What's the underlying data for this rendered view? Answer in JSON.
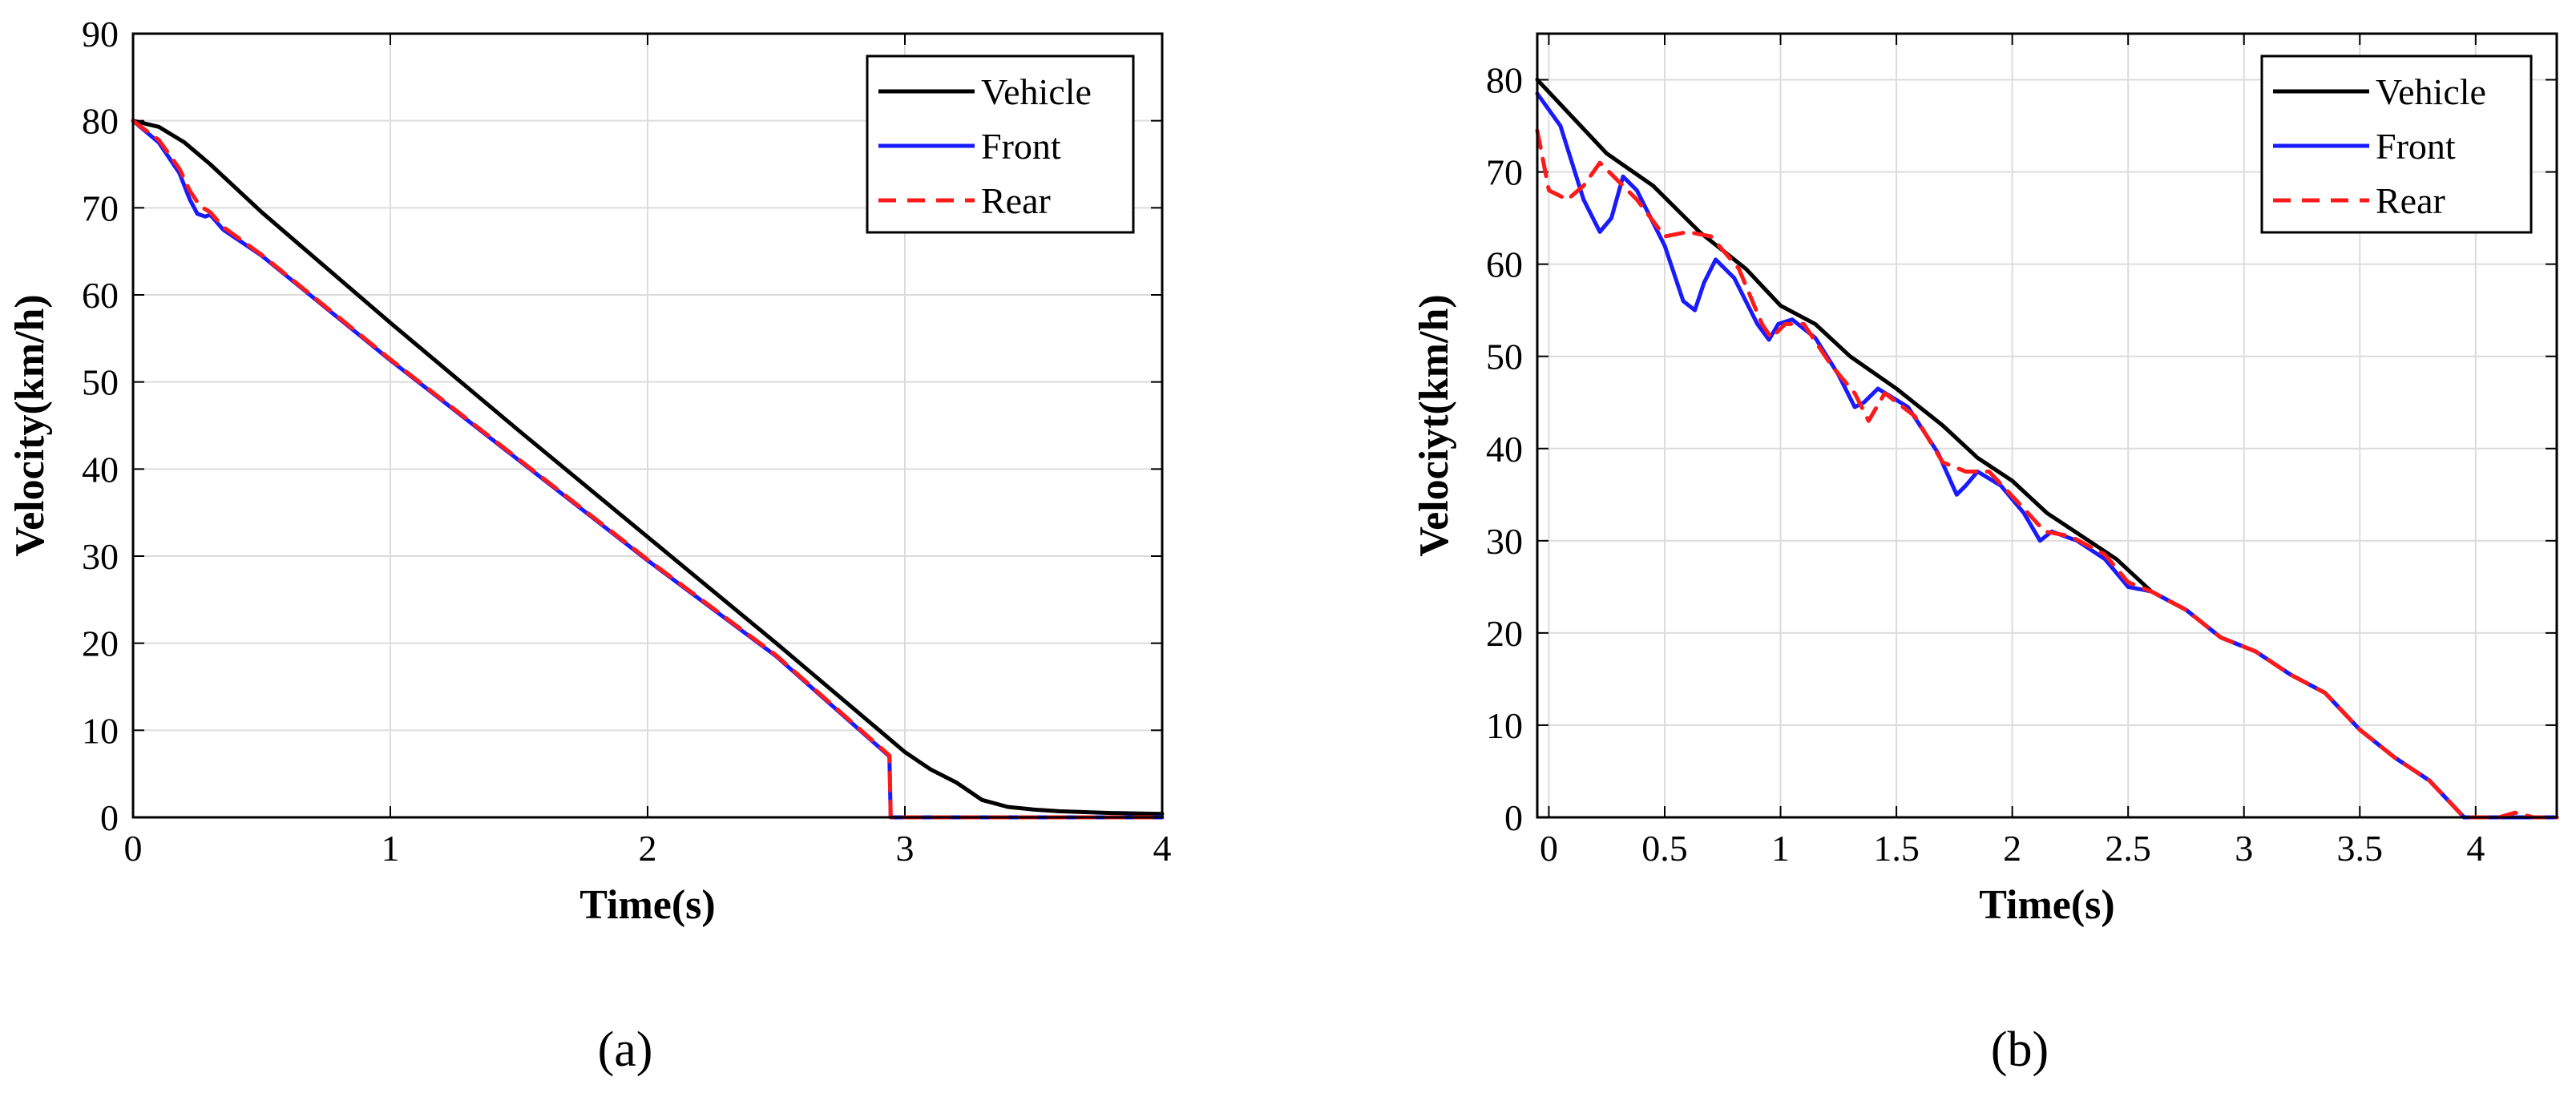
{
  "chart_data": [
    {
      "type": "line",
      "panel_label": "(a)",
      "xlabel": "Time(s)",
      "ylabel": "Velocity(km/h)",
      "xlim": [
        0,
        4
      ],
      "ylim": [
        0,
        90
      ],
      "xticks": [
        0,
        1,
        2,
        3,
        4
      ],
      "xtick_labels": [
        "0",
        "1",
        "2",
        "3",
        "4"
      ],
      "yticks": [
        0,
        10,
        20,
        30,
        40,
        50,
        60,
        70,
        80,
        90
      ],
      "ytick_labels": [
        "0",
        "10",
        "20",
        "30",
        "40",
        "50",
        "60",
        "70",
        "80",
        "90"
      ],
      "grid": true,
      "legend_position": "top-right",
      "series": [
        {
          "name": "Vehicle",
          "color": "#000000",
          "dash": "solid",
          "points": [
            [
              0,
              80
            ],
            [
              0.1,
              79.3
            ],
            [
              0.2,
              77.5
            ],
            [
              0.3,
              75
            ],
            [
              0.5,
              69.5
            ],
            [
              1,
              56.8
            ],
            [
              1.5,
              44.4
            ],
            [
              2,
              32.2
            ],
            [
              2.5,
              20
            ],
            [
              2.9,
              10
            ],
            [
              3,
              7.5
            ],
            [
              3.1,
              5.5
            ],
            [
              3.2,
              4
            ],
            [
              3.3,
              2
            ],
            [
              3.4,
              1.2
            ],
            [
              3.5,
              0.9
            ],
            [
              3.6,
              0.7
            ],
            [
              3.8,
              0.5
            ],
            [
              4,
              0.4
            ]
          ]
        },
        {
          "name": "Front",
          "color": "#1a1aff",
          "dash": "solid",
          "points": [
            [
              0,
              80
            ],
            [
              0.1,
              77.5
            ],
            [
              0.18,
              74
            ],
            [
              0.22,
              71
            ],
            [
              0.25,
              69.3
            ],
            [
              0.28,
              69
            ],
            [
              0.3,
              69.2
            ],
            [
              0.35,
              67.5
            ],
            [
              0.5,
              64.5
            ],
            [
              1,
              52.5
            ],
            [
              1.5,
              41
            ],
            [
              2,
              29.5
            ],
            [
              2.5,
              18.5
            ],
            [
              2.94,
              7
            ],
            [
              2.945,
              0
            ],
            [
              3.2,
              0
            ],
            [
              4,
              0
            ]
          ]
        },
        {
          "name": "Rear",
          "color": "#ff1a1a",
          "dash": "dashed",
          "points": [
            [
              0,
              80
            ],
            [
              0.1,
              77.8
            ],
            [
              0.18,
              74.5
            ],
            [
              0.22,
              72
            ],
            [
              0.26,
              70.2
            ],
            [
              0.3,
              69.5
            ],
            [
              0.35,
              67.8
            ],
            [
              0.5,
              64.6
            ],
            [
              1,
              52.6
            ],
            [
              1.5,
              41.1
            ],
            [
              2,
              29.6
            ],
            [
              2.5,
              18.6
            ],
            [
              2.94,
              7.1
            ],
            [
              2.945,
              0
            ],
            [
              3.2,
              0
            ],
            [
              4,
              0
            ]
          ]
        }
      ]
    },
    {
      "type": "line",
      "panel_label": "(b)",
      "xlabel": "Time(s)",
      "ylabel": "Velociyt(km/h)",
      "xlim": [
        -0.05,
        4.35
      ],
      "ylim": [
        0,
        85
      ],
      "xticks": [
        0,
        0.5,
        1,
        1.5,
        2,
        2.5,
        3,
        3.5,
        4
      ],
      "xtick_labels": [
        "0",
        "0.5",
        "1",
        "1.5",
        "2",
        "2.5",
        "3",
        "3.5",
        "4"
      ],
      "yticks": [
        0,
        10,
        20,
        30,
        40,
        50,
        60,
        70,
        80
      ],
      "ytick_labels": [
        "0",
        "10",
        "20",
        "30",
        "40",
        "50",
        "60",
        "70",
        "80"
      ],
      "grid": true,
      "legend_position": "top-right",
      "series": [
        {
          "name": "Vehicle",
          "color": "#000000",
          "dash": "solid",
          "points": [
            [
              -0.05,
              80
            ],
            [
              0.1,
              76
            ],
            [
              0.25,
              72
            ],
            [
              0.45,
              68.5
            ],
            [
              0.65,
              63.5
            ],
            [
              0.85,
              59.5
            ],
            [
              1,
              55.5
            ],
            [
              1.15,
              53.5
            ],
            [
              1.3,
              50
            ],
            [
              1.5,
              46.5
            ],
            [
              1.7,
              42.5
            ],
            [
              1.85,
              39
            ],
            [
              2,
              36.5
            ],
            [
              2.15,
              33
            ],
            [
              2.3,
              30.5
            ],
            [
              2.45,
              28
            ],
            [
              2.6,
              24.5
            ],
            [
              2.75,
              22.5
            ],
            [
              2.9,
              19.5
            ],
            [
              3.05,
              18
            ],
            [
              3.2,
              15.5
            ],
            [
              3.35,
              13.5
            ],
            [
              3.5,
              9.5
            ],
            [
              3.65,
              6.5
            ],
            [
              3.8,
              4
            ],
            [
              3.95,
              0
            ],
            [
              4.15,
              0
            ],
            [
              4.35,
              0
            ]
          ]
        },
        {
          "name": "Front",
          "color": "#1a1aff",
          "dash": "solid",
          "points": [
            [
              -0.05,
              78.5
            ],
            [
              0.05,
              75
            ],
            [
              0.15,
              67
            ],
            [
              0.22,
              63.5
            ],
            [
              0.27,
              65
            ],
            [
              0.32,
              69.5
            ],
            [
              0.38,
              68
            ],
            [
              0.5,
              62
            ],
            [
              0.58,
              56
            ],
            [
              0.63,
              55
            ],
            [
              0.67,
              58
            ],
            [
              0.72,
              60.5
            ],
            [
              0.8,
              58.5
            ],
            [
              0.9,
              53.5
            ],
            [
              0.95,
              51.8
            ],
            [
              0.99,
              53.5
            ],
            [
              1.05,
              54
            ],
            [
              1.15,
              52
            ],
            [
              1.25,
              48
            ],
            [
              1.32,
              44.5
            ],
            [
              1.36,
              45
            ],
            [
              1.42,
              46.5
            ],
            [
              1.55,
              44.5
            ],
            [
              1.68,
              39.5
            ],
            [
              1.76,
              35
            ],
            [
              1.8,
              36
            ],
            [
              1.85,
              37.5
            ],
            [
              1.95,
              36
            ],
            [
              2.05,
              33
            ],
            [
              2.12,
              30
            ],
            [
              2.17,
              31
            ],
            [
              2.28,
              30
            ],
            [
              2.4,
              28
            ],
            [
              2.5,
              25
            ],
            [
              2.6,
              24.5
            ],
            [
              2.75,
              22.5
            ],
            [
              2.9,
              19.5
            ],
            [
              3.05,
              18
            ],
            [
              3.2,
              15.5
            ],
            [
              3.35,
              13.5
            ],
            [
              3.5,
              9.5
            ],
            [
              3.65,
              6.5
            ],
            [
              3.8,
              4
            ],
            [
              3.95,
              0
            ],
            [
              4.15,
              0
            ],
            [
              4.35,
              0
            ]
          ]
        },
        {
          "name": "Rear",
          "color": "#ff1a1a",
          "dash": "dashed",
          "points": [
            [
              -0.05,
              74.5
            ],
            [
              0,
              68
            ],
            [
              0.08,
              67
            ],
            [
              0.15,
              68.5
            ],
            [
              0.22,
              71
            ],
            [
              0.28,
              69.5
            ],
            [
              0.38,
              67
            ],
            [
              0.5,
              63
            ],
            [
              0.6,
              63.5
            ],
            [
              0.7,
              63
            ],
            [
              0.82,
              59.5
            ],
            [
              0.92,
              53.5
            ],
            [
              0.96,
              52
            ],
            [
              1.02,
              53.5
            ],
            [
              1.1,
              53.5
            ],
            [
              1.22,
              49
            ],
            [
              1.32,
              46
            ],
            [
              1.38,
              43
            ],
            [
              1.45,
              46
            ],
            [
              1.58,
              43.5
            ],
            [
              1.7,
              38.5
            ],
            [
              1.8,
              37.5
            ],
            [
              1.9,
              37.5
            ],
            [
              2.05,
              33.5
            ],
            [
              2.14,
              31
            ],
            [
              2.25,
              30.5
            ],
            [
              2.4,
              28.5
            ],
            [
              2.5,
              25.5
            ],
            [
              2.6,
              24.5
            ],
            [
              2.75,
              22.5
            ],
            [
              2.9,
              19.5
            ],
            [
              3.05,
              18
            ],
            [
              3.2,
              15.5
            ],
            [
              3.35,
              13.5
            ],
            [
              3.5,
              9.5
            ],
            [
              3.65,
              6.5
            ],
            [
              3.8,
              4
            ],
            [
              3.95,
              0
            ],
            [
              4.1,
              0
            ],
            [
              4.17,
              0.5
            ],
            [
              4.25,
              0
            ],
            [
              4.35,
              0
            ]
          ]
        }
      ]
    }
  ]
}
